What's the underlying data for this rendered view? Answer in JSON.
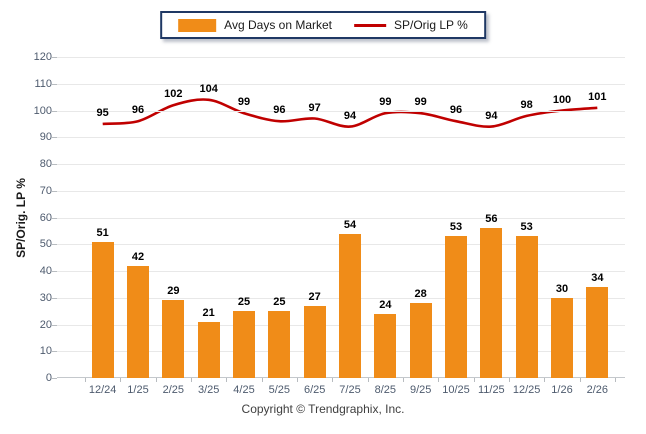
{
  "legend": {
    "items": [
      {
        "label": "Avg Days on Market",
        "type": "bar",
        "color": "#F08C18"
      },
      {
        "label": "SP/Orig LP %",
        "type": "line",
        "color": "#C00000"
      }
    ]
  },
  "chart_data": {
    "type": "bar+line",
    "categories": [
      "12/24",
      "1/25",
      "2/25",
      "3/25",
      "4/25",
      "5/25",
      "6/25",
      "7/25",
      "8/25",
      "9/25",
      "10/25",
      "11/25",
      "12/25",
      "1/26",
      "2/26"
    ],
    "series": [
      {
        "name": "Avg Days on Market",
        "type": "bar",
        "color": "#F08C18",
        "values": [
          51,
          42,
          29,
          21,
          25,
          25,
          27,
          54,
          24,
          28,
          53,
          56,
          53,
          30,
          34
        ]
      },
      {
        "name": "SP/Orig LP %",
        "type": "line",
        "color": "#C00000",
        "values": [
          95,
          96,
          102,
          104,
          99,
          96,
          97,
          94,
          99,
          99,
          96,
          94,
          98,
          100,
          101
        ]
      }
    ],
    "ylabel": "SP/Orig. LP %",
    "ylim": [
      0,
      120
    ],
    "ytick_step": 10,
    "grid": true,
    "legend_position": "top-center",
    "colors": {
      "grid": "#e8e8e8",
      "axis_text": "#4e5b6e",
      "value_label": "#000000"
    }
  },
  "footer": {
    "copyright": "Copyright © Trendgraphix, Inc."
  }
}
